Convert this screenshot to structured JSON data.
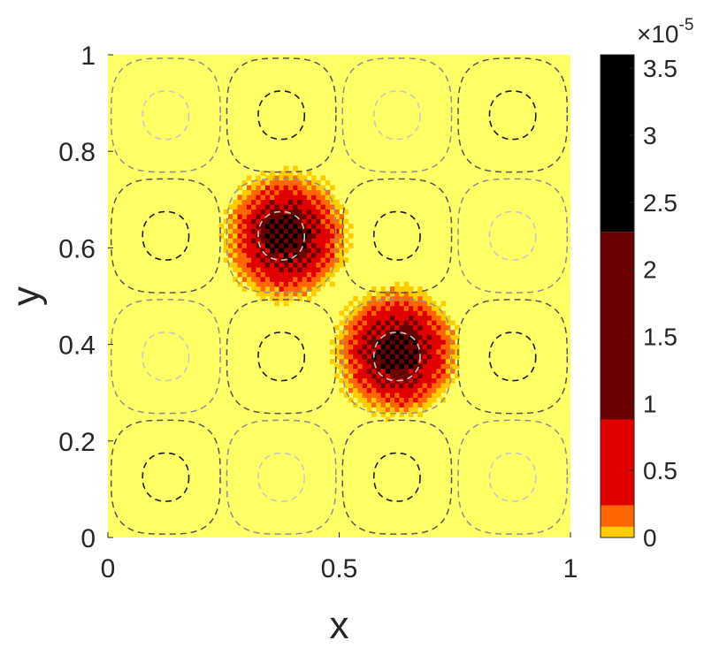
{
  "chart_data": {
    "type": "heatmap",
    "title": "",
    "xlabel": "x",
    "ylabel": "y",
    "xlim": [
      0,
      1
    ],
    "ylim": [
      0,
      1
    ],
    "x_ticks": [
      {
        "value": 0,
        "label": "0"
      },
      {
        "value": 0.5,
        "label": "0.5"
      },
      {
        "value": 1,
        "label": "1"
      }
    ],
    "y_ticks": [
      {
        "value": 0,
        "label": "0"
      },
      {
        "value": 0.2,
        "label": "0.2"
      },
      {
        "value": 0.4,
        "label": "0.4"
      },
      {
        "value": 0.6,
        "label": "0.6"
      },
      {
        "value": 0.8,
        "label": "0.8"
      },
      {
        "value": 1,
        "label": "1"
      }
    ],
    "grid": false,
    "background_color": "#ffff66",
    "heat_sources": [
      {
        "x": 0.385,
        "y": 0.625,
        "peak": 3.6e-05,
        "spread": 0.065
      },
      {
        "x": 0.625,
        "y": 0.385,
        "peak": 3.6e-05,
        "spread": 0.065
      }
    ],
    "contour_cells": {
      "centers": [
        0.125,
        0.375,
        0.625,
        0.875
      ],
      "line_style": "dashed",
      "signs_rows_top_to_bottom": [
        [
          -1,
          1,
          -1,
          1
        ],
        [
          1,
          -1,
          1,
          -1
        ],
        [
          -1,
          1,
          -1,
          1
        ],
        [
          1,
          -1,
          1,
          -1
        ]
      ],
      "inner_colors": {
        "positive": "#1a1a1a",
        "negative": "#c8c8c8"
      },
      "outer_colors": {
        "positive": "#555555",
        "negative": "#8f8f8f"
      }
    },
    "colorbar": {
      "min": 0,
      "max": 3.6e-05,
      "multiplier_base": "×10",
      "multiplier_exponent": "-5",
      "ticks": [
        {
          "value": 0,
          "label": "0"
        },
        {
          "value": 0.5,
          "label": "0.5"
        },
        {
          "value": 1,
          "label": "1"
        },
        {
          "value": 1.5,
          "label": "1.5"
        },
        {
          "value": 2,
          "label": "2"
        },
        {
          "value": 2.5,
          "label": "2.5"
        },
        {
          "value": 3,
          "label": "3"
        },
        {
          "value": 3.5,
          "label": "3.5"
        }
      ],
      "bands": [
        {
          "from": 0.0,
          "to": 0.08,
          "color": "#ffcc00"
        },
        {
          "from": 0.08,
          "to": 0.24,
          "color": "#ff6600"
        },
        {
          "from": 0.24,
          "to": 0.88,
          "color": "#e00000"
        },
        {
          "from": 0.88,
          "to": 2.28,
          "color": "#6b0000"
        },
        {
          "from": 2.28,
          "to": 3.6,
          "color": "#000000"
        }
      ]
    }
  }
}
